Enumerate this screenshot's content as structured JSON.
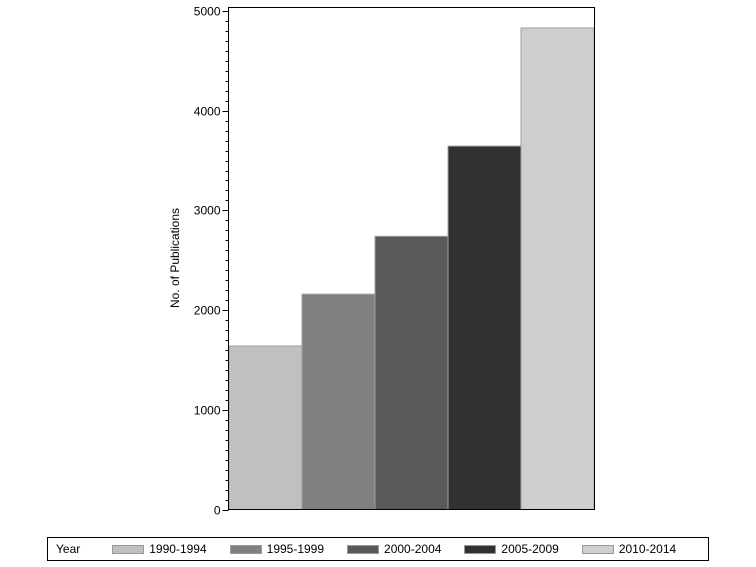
{
  "chart_data": {
    "type": "bar",
    "title": "",
    "xlabel": "",
    "ylabel": "No. of Publications",
    "ylim": [
      0,
      5000
    ],
    "yticks": [
      0,
      1000,
      2000,
      3000,
      4000,
      5000
    ],
    "minor_tick_step": 100,
    "grid": false,
    "legend_position": "bottom",
    "legend_title": "Year",
    "categories": [
      "1990-1994",
      "1995-1999",
      "2000-2004",
      "2005-2009",
      "2010-2014"
    ],
    "values": [
      1640,
      2160,
      2740,
      3645,
      4830
    ],
    "colors": [
      "#c0c0c0",
      "#808080",
      "#595959",
      "#313131",
      "#cecece"
    ]
  },
  "legend": {
    "title": "Year",
    "items": [
      {
        "label": "1990-1994",
        "color": "#c0c0c0"
      },
      {
        "label": "1995-1999",
        "color": "#808080"
      },
      {
        "label": "2000-2004",
        "color": "#595959"
      },
      {
        "label": "2005-2009",
        "color": "#313131"
      },
      {
        "label": "2010-2014",
        "color": "#cecece"
      }
    ]
  }
}
